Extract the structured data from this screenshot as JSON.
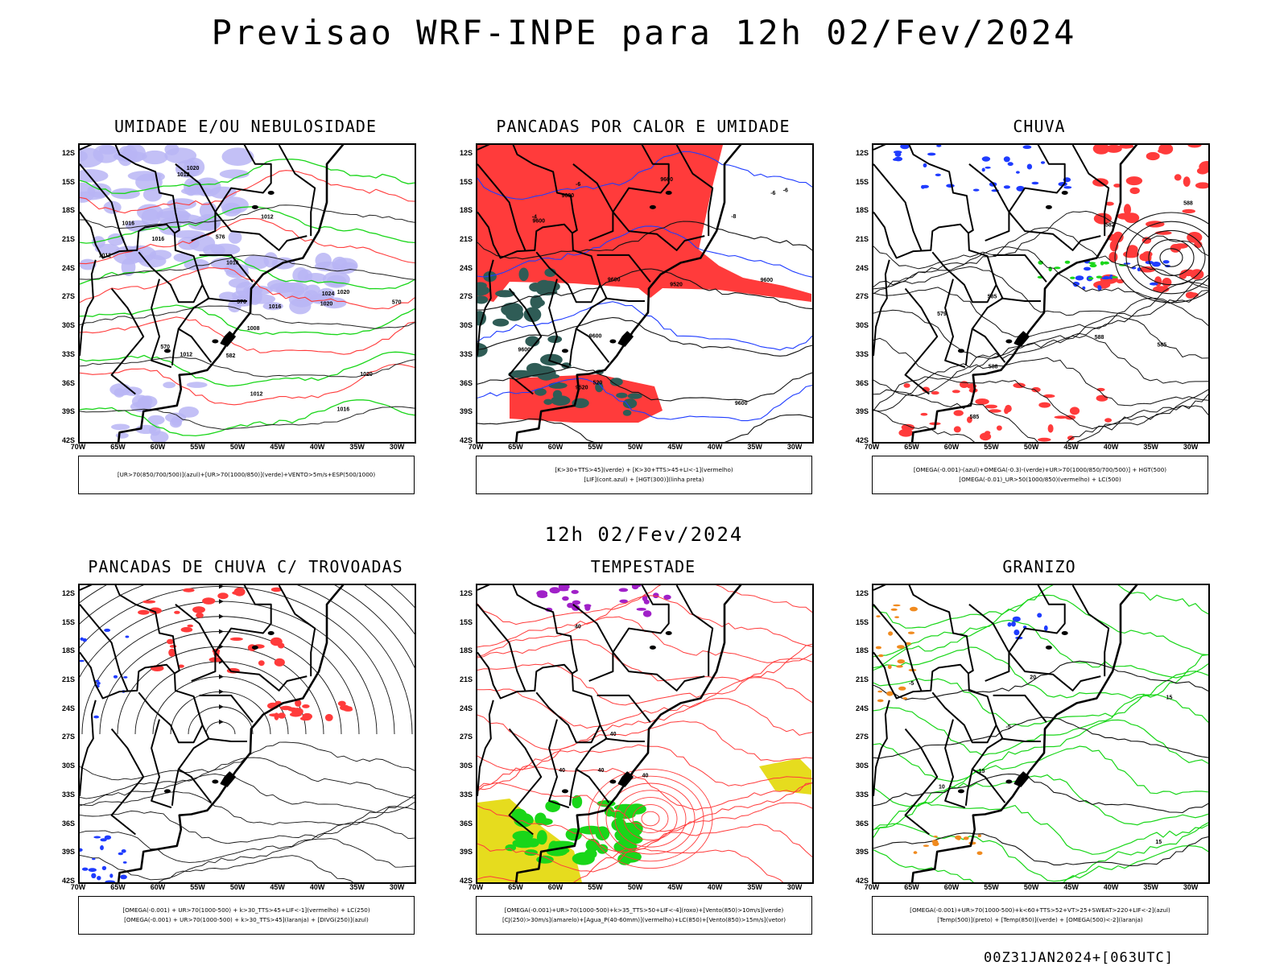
{
  "header": {
    "main_title": "Previsao WRF-INPE  para 12h 02/Fev/2024",
    "mid_title": "12h 02/Fev/2024",
    "footer_stamp": "00Z31JAN2024+[063UTC]"
  },
  "axes": {
    "lat_labels": [
      "12S",
      "15S",
      "18S",
      "21S",
      "24S",
      "27S",
      "30S",
      "33S",
      "36S",
      "39S",
      "42S"
    ],
    "lon_labels": [
      "70W",
      "65W",
      "60W",
      "55W",
      "50W",
      "45W",
      "40W",
      "35W",
      "30W"
    ]
  },
  "colors": {
    "red": "#ff3b3b",
    "blue": "#1f3cff",
    "green": "#19d619",
    "lavender": "#b8b5f5",
    "teal": "#2f5c56",
    "purple": "#a020c8",
    "yellow": "#e6dc1e",
    "orange": "#f08a1e",
    "black": "#000000"
  },
  "panels": [
    {
      "title": "UMIDADE E/OU NEBULOSIDADE",
      "legend_lines": [
        "[UR>70(850/700/500)](azul)+[UR>70(1000/850)](verde)+VENTO>5m/s+ESP(500/1000)"
      ],
      "contour_labels": [
        "1016",
        "1016",
        "1016",
        "1012",
        "1012",
        "1012",
        "1012",
        "1016",
        "1020",
        "1020",
        "1020",
        "1024",
        "1016",
        "1020",
        "1008",
        "1012",
        "576",
        "576",
        "570",
        "582",
        "570"
      ]
    },
    {
      "title": "PANCADAS POR CALOR E UMIDADE",
      "legend_lines": [
        "[K>30+TTS>45](verde) + [K>30+TTS>45+LI<-1](vermelho)",
        "[LIF](cont.azul) + [HGT(300)](linha preta)"
      ],
      "contour_labels": [
        "9680",
        "9600",
        "9600",
        "9600",
        "9600",
        "9600",
        "9520",
        "9520",
        "9600",
        "-6",
        "-8",
        "-6",
        "-4",
        "-6",
        "520",
        "9600"
      ]
    },
    {
      "title": "CHUVA",
      "legend_lines": [
        "[OMEGA(-0.001)-(azul)+OMEGA(-0.3)-(verde)+UR>70(1000/850/700/500)] + HGT(500)",
        "[OMEGA(-0.01)_UR>50(1000/850)(vermelho) + LC(500)"
      ],
      "contour_labels": [
        "585",
        "588",
        "585",
        "588",
        "585",
        "582",
        "579",
        "588"
      ]
    },
    {
      "title": "PANCADAS DE CHUVA C/ TROVOADAS",
      "legend_lines": [
        "[OMEGA(-0.001) + UR>70(1000-500) + k>30_TTS>45+LIF<-1](vermelho) + LC(250)",
        "[OMEGA(-0.001) + UR>70(1000-500) + k>30_TTS>45](laranja) + [DIVG(250)](azul)"
      ],
      "contour_labels": []
    },
    {
      "title": "TEMPESTADE",
      "legend_lines": [
        "[OMEGA(-0.001)+UR>70(1000-500)+k>35_TTS>50+LIF<-4](roxo)+[Vento(850)>10m/s](verde)",
        "[CJ(250)>30m/s](amarelo)+[Agua_P(40-60mm)](vermelho)+LC(850)+[Vento(850)>15m/s](vetor)"
      ],
      "contour_labels": [
        "40",
        "40",
        "40",
        "40",
        "40"
      ]
    },
    {
      "title": "GRANIZO",
      "legend_lines": [
        "[OMEGA(-0.001)+UR>70(1000-500)+k<60+TTS>52+VT>25+SWEAT>220+LIF<-2](azul)",
        "[Temp(500)](preto) + [Temp(850)](verde) + [OMEGA(500)<-2](laranja)"
      ],
      "contour_labels": [
        "-5",
        "-5",
        "10",
        "15",
        "15",
        "20",
        "15"
      ]
    }
  ]
}
